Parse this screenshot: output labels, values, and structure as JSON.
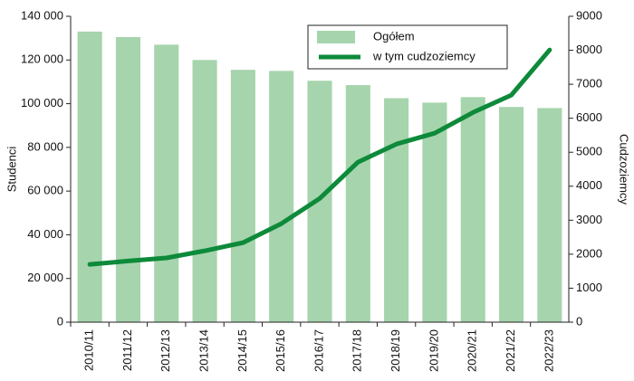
{
  "chart_data": {
    "type": "bar",
    "categories": [
      "2010/11",
      "2011/12",
      "2012/13",
      "2013/14",
      "2014/15",
      "2015/16",
      "2016/17",
      "2017/18",
      "2018/19",
      "2019/20",
      "2020/21",
      "2021/22",
      "2022/23"
    ],
    "series": [
      {
        "name": "Ogółem",
        "type": "bar",
        "color": "#a6d4ad",
        "values": [
          133000,
          130500,
          127000,
          120000,
          115500,
          115000,
          110500,
          108500,
          102500,
          100500,
          103000,
          98500,
          98000
        ]
      },
      {
        "name": "w tym cudzoziemcy",
        "type": "line",
        "axis": "y2",
        "color": "#0d8a3a",
        "values": [
          1700,
          1800,
          1890,
          2100,
          2340,
          2900,
          3640,
          4710,
          5240,
          5560,
          6170,
          6680,
          8010
        ]
      }
    ],
    "ylabel": "Studenci",
    "y2label": "Cudzoziemcy",
    "ylim": [
      0,
      140000
    ],
    "yticks": [
      0,
      {
        "value": 20000,
        "label": "20 000"
      },
      {
        "value": 40000,
        "label": "40 000"
      },
      {
        "value": 60000,
        "label": "60 000"
      },
      {
        "value": 80000,
        "label": "80 000"
      },
      {
        "value": 100000,
        "label": "100 000"
      },
      {
        "value": 120000,
        "label": "120 000"
      },
      {
        "value": 140000,
        "label": "140 000"
      }
    ],
    "y2lim": [
      0,
      9000
    ],
    "y2ticks": [
      0,
      1000,
      2000,
      3000,
      4000,
      5000,
      6000,
      7000,
      8000,
      9000
    ],
    "legend": "upper right"
  }
}
